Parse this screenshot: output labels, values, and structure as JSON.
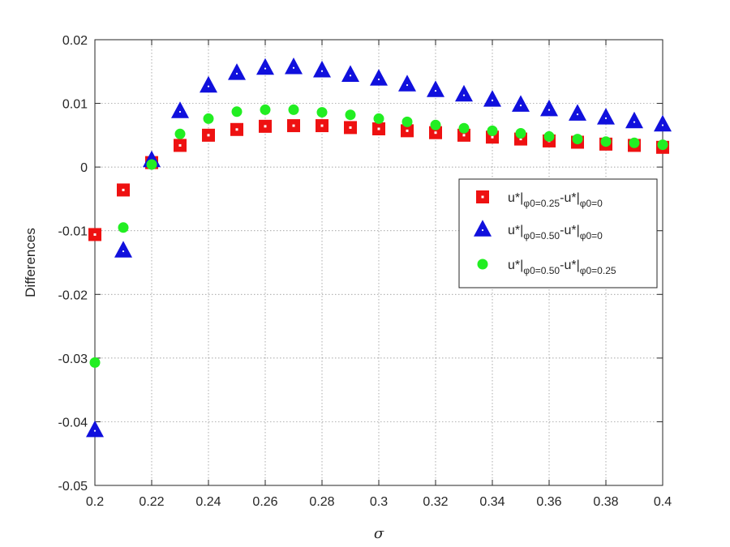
{
  "chart_data": {
    "type": "scatter",
    "title": "",
    "xlabel": "σ",
    "ylabel": "Differences",
    "xlim": [
      0.2,
      0.4
    ],
    "ylim": [
      -0.05,
      0.02
    ],
    "xticks": [
      0.2,
      0.22,
      0.24,
      0.26,
      0.28,
      0.3,
      0.32,
      0.34,
      0.36,
      0.38,
      0.4
    ],
    "xtick_labels": [
      "0.2",
      "0.22",
      "0.24",
      "0.26",
      "0.28",
      "0.3",
      "0.32",
      "0.34",
      "0.36",
      "0.38",
      "0.4"
    ],
    "yticks": [
      -0.05,
      -0.04,
      -0.03,
      -0.02,
      -0.01,
      0,
      0.01,
      0.02
    ],
    "ytick_labels": [
      "-0.05",
      "-0.04",
      "-0.03",
      "-0.02",
      "-0.01",
      "0",
      "0.01",
      "0.02"
    ],
    "grid": true,
    "legend_position": "right",
    "x": [
      0.2,
      0.21,
      0.22,
      0.23,
      0.24,
      0.25,
      0.26,
      0.27,
      0.28,
      0.29,
      0.3,
      0.31,
      0.32,
      0.33,
      0.34,
      0.35,
      0.36,
      0.37,
      0.38,
      0.39,
      0.4
    ],
    "series": [
      {
        "name": "u*|φ0=0.25-u*|φ0=0",
        "legend_main": [
          "u*|",
          "-u*|"
        ],
        "legend_subs": [
          "φ0=0.25",
          "φ0=0"
        ],
        "marker": "square",
        "color": "#ee1111",
        "values": [
          -0.0106,
          -0.0036,
          0.0007,
          0.0034,
          0.005,
          0.0059,
          0.0064,
          0.0065,
          0.0065,
          0.0062,
          0.006,
          0.0057,
          0.0054,
          0.005,
          0.0047,
          0.0044,
          0.0041,
          0.0039,
          0.0036,
          0.0034,
          0.0031
        ]
      },
      {
        "name": "u*|φ0=0.50-u*|φ0=0",
        "legend_main": [
          "u*|",
          "-u*|"
        ],
        "legend_subs": [
          "φ0=0.50",
          "φ0=0"
        ],
        "marker": "triangle",
        "color": "#1010dd",
        "values": [
          -0.0413,
          -0.0131,
          0.0011,
          0.0088,
          0.0128,
          0.0148,
          0.0156,
          0.0157,
          0.0152,
          0.0145,
          0.0139,
          0.013,
          0.0121,
          0.0114,
          0.0106,
          0.0098,
          0.0091,
          0.0084,
          0.0078,
          0.0072,
          0.0067
        ]
      },
      {
        "name": "u*|φ0=0.50-u*|φ0=0.25",
        "legend_main": [
          "u*|",
          "-u*|"
        ],
        "legend_subs": [
          "φ0=0.50",
          "φ0=0.25"
        ],
        "marker": "circle",
        "color": "#22ee22",
        "values": [
          -0.0307,
          -0.0095,
          0.0004,
          0.0052,
          0.0076,
          0.0087,
          0.009,
          0.009,
          0.0086,
          0.0082,
          0.0076,
          0.0071,
          0.0066,
          0.0061,
          0.0057,
          0.0053,
          0.0048,
          0.0044,
          0.004,
          0.0038,
          0.0035
        ]
      }
    ]
  }
}
